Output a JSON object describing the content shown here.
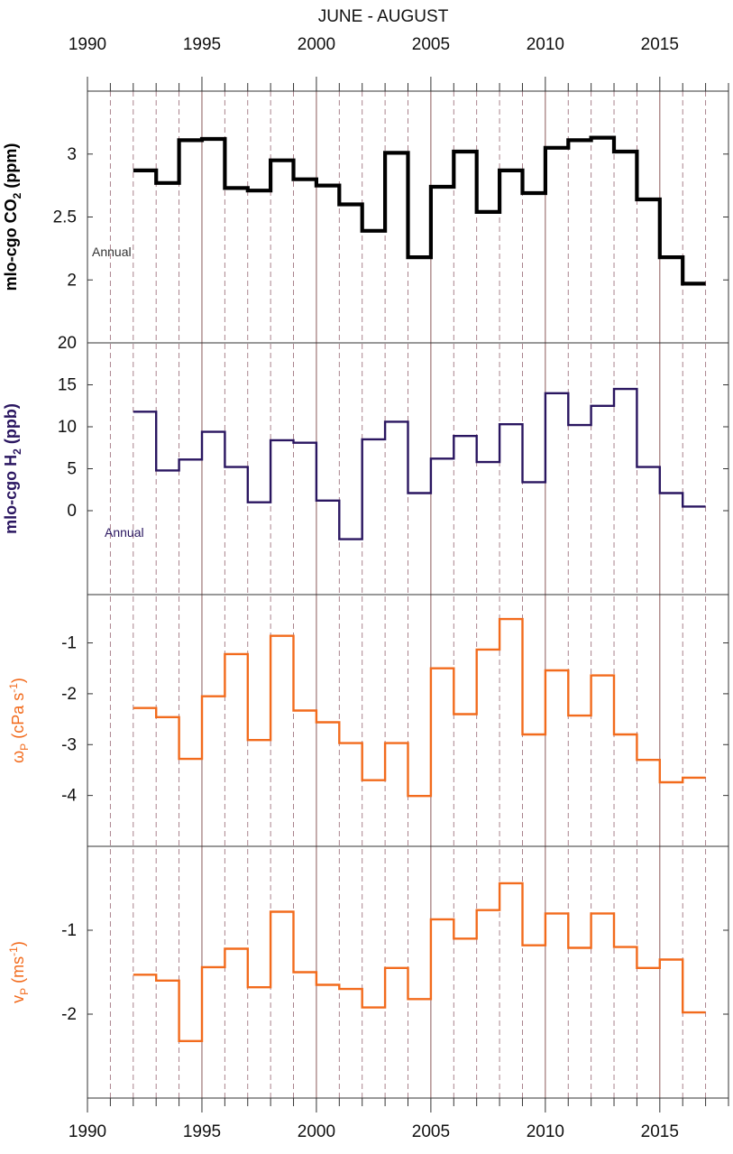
{
  "title": "JUNE - AUGUST",
  "x_axis": {
    "min": 1990,
    "max": 2018,
    "major_ticks": [
      1990,
      1995,
      2000,
      2005,
      2010,
      2015
    ],
    "minor_ticks": [
      1990,
      1991,
      1992,
      1993,
      1994,
      1995,
      1996,
      1997,
      1998,
      1999,
      2000,
      2001,
      2002,
      2003,
      2004,
      2005,
      2006,
      2007,
      2008,
      2009,
      2010,
      2011,
      2012,
      2013,
      2014,
      2015,
      2016,
      2017,
      2018
    ],
    "gridlines": "solid at multiples of 5, dashed at other years"
  },
  "colors": {
    "co2": "#000000",
    "h2": "#2a1660",
    "omega": "#f26b1d",
    "v": "#f26b1d",
    "grid_dashed": "#a07580",
    "grid_solid": "#8a5a5a"
  },
  "chart_data": [
    {
      "type": "line",
      "step": "post",
      "title": "JUNE - AUGUST",
      "ylabel": "mlo-cgo CO2 (ppm)",
      "ylabel_main": "mlo-cgo CO",
      "ylabel_sub": "2",
      "ylabel_tail": " (ppm)",
      "annotation": "Annual",
      "ylim": [
        1.5,
        3.5
      ],
      "yticks": [
        2,
        2.5,
        3
      ],
      "ytick_labels": [
        "2",
        "2.5",
        "3"
      ],
      "series": [
        {
          "x": [
            1992,
            1993,
            1994,
            1995,
            1996,
            1997,
            1998,
            1999,
            2000,
            2001,
            2002,
            2003,
            2004,
            2005,
            2006,
            2007,
            2008,
            2009,
            2010,
            2011,
            2012,
            2013,
            2014,
            2015,
            2016
          ],
          "values": [
            2.87,
            2.77,
            3.11,
            3.12,
            2.73,
            2.71,
            2.95,
            2.8,
            2.75,
            2.6,
            2.39,
            3.01,
            2.18,
            2.74,
            3.02,
            2.54,
            2.87,
            2.69,
            3.05,
            3.11,
            3.13,
            3.02,
            2.64,
            2.18,
            1.97
          ]
        }
      ]
    },
    {
      "type": "line",
      "step": "post",
      "ylabel": "mlo-cgo H2 (ppb)",
      "ylabel_main": "mlo-cgo H",
      "ylabel_sub": "2",
      "ylabel_tail": " (ppb)",
      "annotation": "Annual",
      "ylim": [
        -10,
        20
      ],
      "yticks": [
        0,
        5,
        10,
        15,
        20
      ],
      "ytick_labels": [
        "0",
        "5",
        "10",
        "15",
        "20"
      ],
      "series": [
        {
          "x": [
            1992,
            1993,
            1994,
            1995,
            1996,
            1997,
            1998,
            1999,
            2000,
            2001,
            2002,
            2003,
            2004,
            2005,
            2006,
            2007,
            2008,
            2009,
            2010,
            2011,
            2012,
            2013,
            2014,
            2015,
            2016
          ],
          "values": [
            11.8,
            4.8,
            6.1,
            9.4,
            5.2,
            1.0,
            8.4,
            8.1,
            1.2,
            -3.4,
            8.5,
            10.6,
            2.1,
            6.2,
            8.9,
            5.8,
            10.3,
            3.4,
            14.0,
            10.2,
            12.5,
            14.5,
            5.2,
            2.1,
            0.5
          ]
        }
      ]
    },
    {
      "type": "line",
      "step": "post",
      "ylabel": "ωP (cPa s-1)",
      "ylabel_main": "ω",
      "ylabel_sub": "P",
      "ylabel_tail": " (cPa s",
      "ylabel_sup": "-1",
      "ylabel_end": ")",
      "ylim": [
        -5,
        -0.05
      ],
      "yticks": [
        -4,
        -3,
        -2,
        -1
      ],
      "ytick_labels": [
        "-4",
        "-3",
        "-2",
        "-1"
      ],
      "series": [
        {
          "x": [
            1992,
            1993,
            1994,
            1995,
            1996,
            1997,
            1998,
            1999,
            2000,
            2001,
            2002,
            2003,
            2004,
            2005,
            2006,
            2007,
            2008,
            2009,
            2010,
            2011,
            2012,
            2013,
            2014,
            2015,
            2016
          ],
          "values": [
            -2.28,
            -2.46,
            -3.28,
            -2.05,
            -1.22,
            -2.91,
            -0.86,
            -2.33,
            -2.56,
            -2.97,
            -3.7,
            -2.97,
            -4.01,
            -1.5,
            -2.4,
            -1.13,
            -0.53,
            -2.8,
            -1.54,
            -2.43,
            -1.64,
            -2.8,
            -3.3,
            -3.74,
            -3.65
          ]
        }
      ]
    },
    {
      "type": "line",
      "step": "post",
      "ylabel": "vP (ms-1)",
      "ylabel_main": "v",
      "ylabel_sub": "P",
      "ylabel_tail": " (ms",
      "ylabel_sup": "-1",
      "ylabel_end": ")",
      "ylim": [
        -3,
        0
      ],
      "yticks": [
        -2,
        -1
      ],
      "ytick_labels": [
        "-2",
        "-1"
      ],
      "series": [
        {
          "x": [
            1992,
            1993,
            1994,
            1995,
            1996,
            1997,
            1998,
            1999,
            2000,
            2001,
            2002,
            2003,
            2004,
            2005,
            2006,
            2007,
            2008,
            2009,
            2010,
            2011,
            2012,
            2013,
            2014,
            2015,
            2016
          ],
          "values": [
            -1.53,
            -1.6,
            -2.32,
            -1.44,
            -1.22,
            -1.68,
            -0.78,
            -1.5,
            -1.65,
            -1.7,
            -1.92,
            -1.45,
            -1.82,
            -0.87,
            -1.1,
            -0.76,
            -0.44,
            -1.18,
            -0.8,
            -1.21,
            -0.8,
            -1.2,
            -1.45,
            -1.35,
            -1.98
          ]
        }
      ]
    }
  ]
}
